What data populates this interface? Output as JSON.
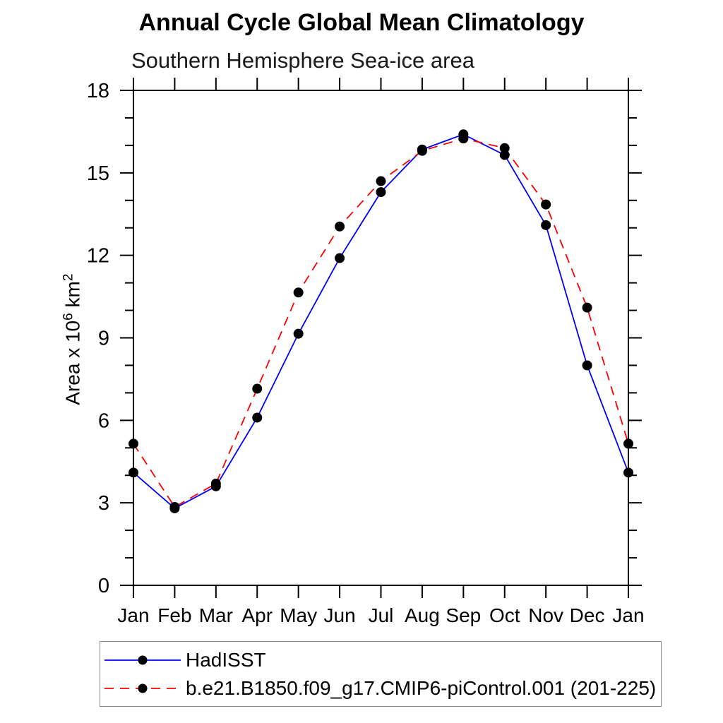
{
  "chart_data": {
    "type": "line",
    "title": "Annual Cycle Global Mean Climatology",
    "subtitle": "Southern Hemisphere Sea-ice area",
    "categories": [
      "Jan",
      "Feb",
      "Mar",
      "Apr",
      "May",
      "Jun",
      "Jul",
      "Aug",
      "Sep",
      "Oct",
      "Nov",
      "Dec",
      "Jan"
    ],
    "series": [
      {
        "name": "HadISST",
        "color": "#0000ff",
        "style": "solid",
        "marker": "filled-black-circle",
        "values": [
          4.1,
          2.8,
          3.6,
          6.1,
          9.15,
          11.9,
          14.3,
          15.85,
          16.4,
          15.65,
          13.1,
          8.0,
          4.1
        ]
      },
      {
        "name": "b.e21.B1850.f09_g17.CMIP6-piControl.001 (201-225)",
        "color": "#ff0000",
        "style": "dashed",
        "marker": "filled-black-circle",
        "values": [
          5.15,
          2.85,
          3.7,
          7.15,
          10.65,
          13.05,
          14.7,
          15.8,
          16.25,
          15.9,
          13.85,
          10.1,
          5.15
        ]
      }
    ],
    "ylabel": {
      "prefix": "Area x 10",
      "sup1": "6",
      "mid": " km",
      "sup2": "2"
    },
    "xlabel": "",
    "ylim": [
      0,
      18
    ],
    "y_major_ticks": [
      0,
      3,
      6,
      9,
      12,
      15,
      18
    ],
    "y_minor_step": 1,
    "grid": false,
    "frame": "box-with-outward-ticks",
    "legend_position": "bottom-left",
    "marker_color": "#000000",
    "axis_color": "#000000"
  }
}
